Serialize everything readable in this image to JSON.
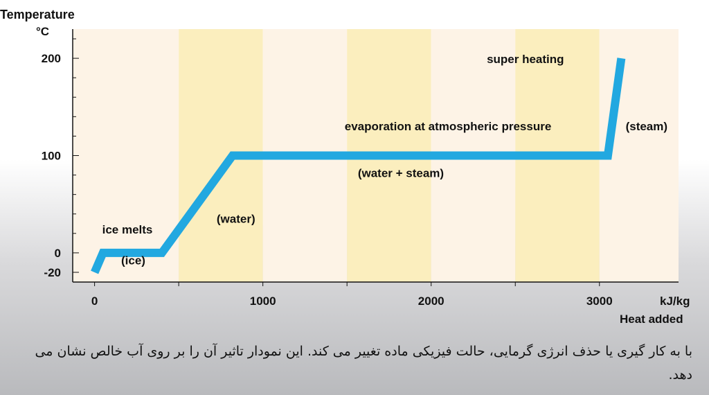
{
  "chart_data": {
    "type": "line",
    "ylabel_line1": "Temperature",
    "ylabel_line2": "°C",
    "xlabel_unit": "kJ/kg",
    "xlabel": "Heat added",
    "xlim": [
      -130,
      3470
    ],
    "ylim": [
      -30,
      230
    ],
    "x_ticks": [
      0,
      1000,
      2000,
      3000
    ],
    "x_tick_labels": [
      "0",
      "1000",
      "2000",
      "3000"
    ],
    "y_ticks": [
      -20,
      0,
      100,
      200
    ],
    "y_tick_labels": [
      "-20",
      "0",
      "100",
      "200"
    ],
    "series": [
      {
        "points": [
          {
            "x": 0,
            "y": -20
          },
          {
            "x": 50,
            "y": 0
          },
          {
            "x": 400,
            "y": 0
          },
          {
            "x": 820,
            "y": 100
          },
          {
            "x": 3050,
            "y": 100
          },
          {
            "x": 3130,
            "y": 200
          }
        ]
      }
    ],
    "annotations": [
      {
        "text": "ice melts",
        "x": 195,
        "y": 20
      },
      {
        "text": "(ice)",
        "x": 230,
        "y": -12
      },
      {
        "text": "(water)",
        "x": 840,
        "y": 31
      },
      {
        "text": "evaporation at atmospheric pressure",
        "x": 2100,
        "y": 126
      },
      {
        "text": "(water + steam)",
        "x": 1820,
        "y": 78
      },
      {
        "text": "super heating",
        "x": 2560,
        "y": 195
      },
      {
        "text": "(steam)",
        "x": 3280,
        "y": 126
      }
    ],
    "band_colors": [
      "#fdf3e6",
      "#fbeebe"
    ],
    "line_color": "#22a8e0",
    "grid": false
  },
  "caption": "با به کار گیری یا حذف انرژی گرمایی، حالت فیزیکی ماده تغییر می کند. این نمودار تاثیر آن را  بر روی آب خالص نشان می دهد."
}
